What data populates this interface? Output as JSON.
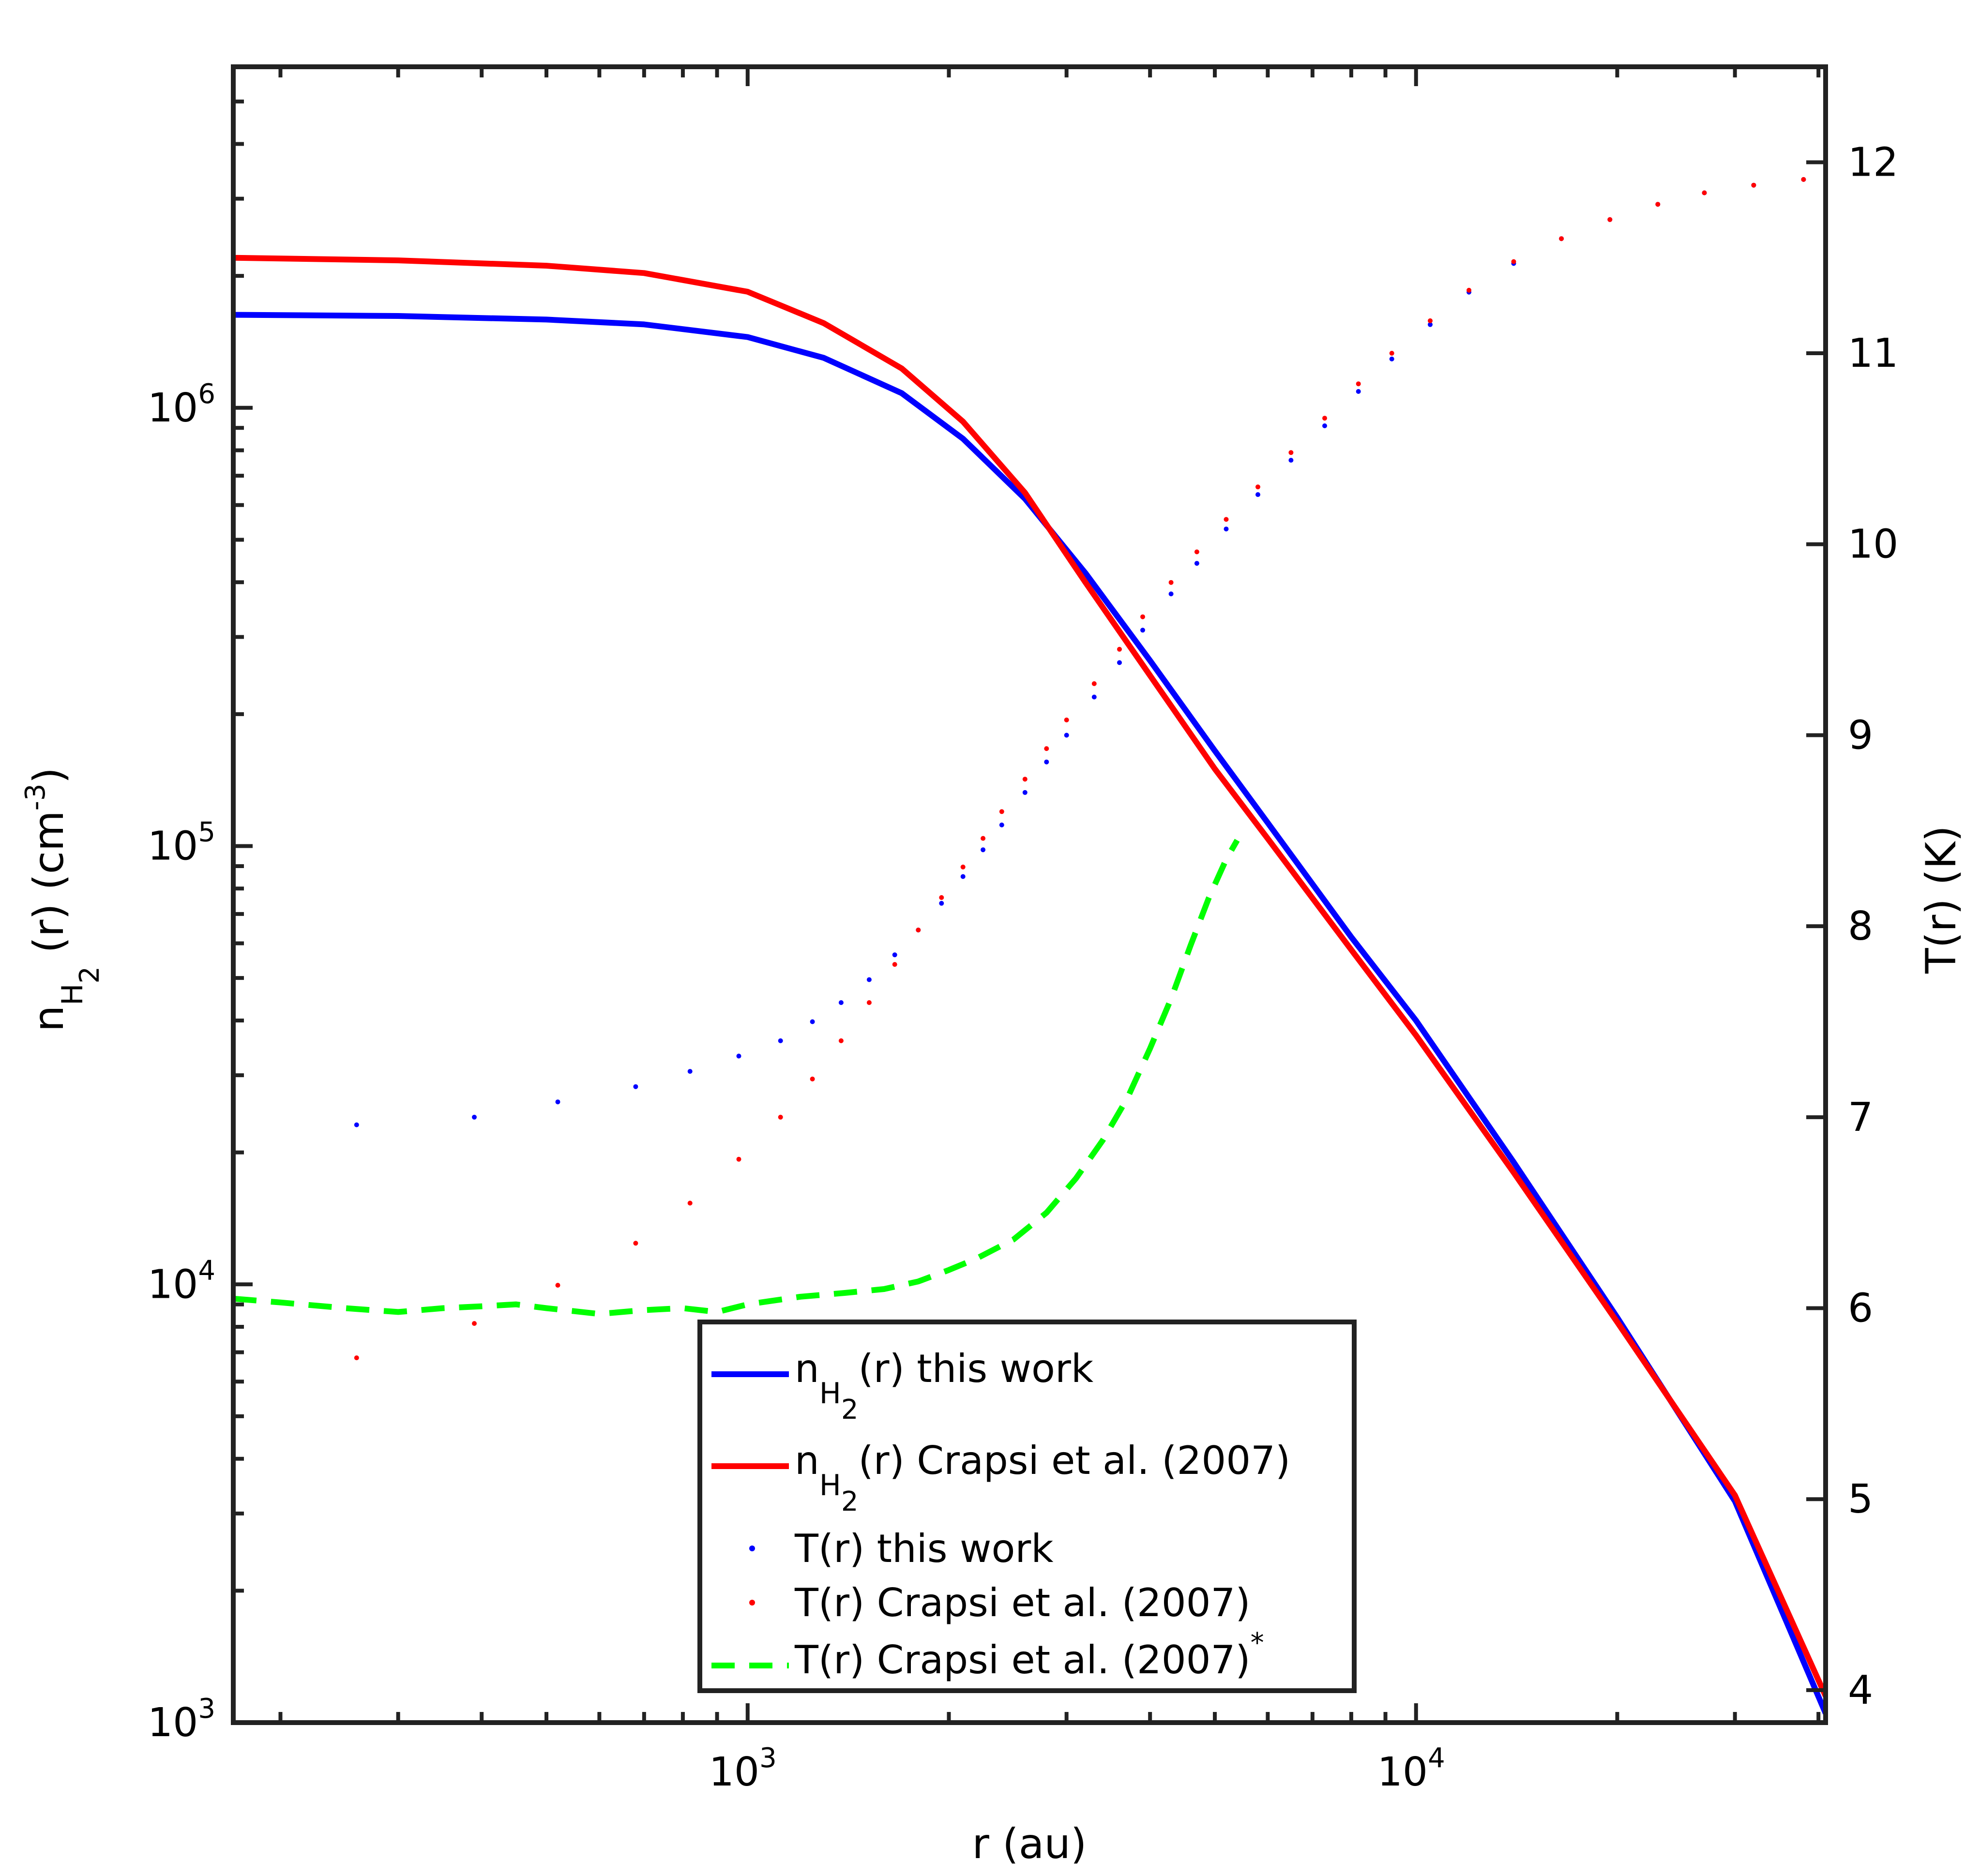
{
  "chart_data": {
    "type": "line",
    "x_axis": {
      "label": "r (au)",
      "scale": "log",
      "range": [
        170,
        41000
      ],
      "major_ticks": [
        1000,
        10000
      ],
      "tick_labels": [
        {
          "base": "10",
          "exp": "3"
        },
        {
          "base": "10",
          "exp": "4"
        }
      ]
    },
    "y_axis_left": {
      "label_main": "n",
      "label_sub1": "H",
      "label_sub2": "2",
      "label_rest": " (r) (cm",
      "label_exp": "-3",
      "label_close": ")",
      "scale": "log",
      "range": [
        1000,
        6000000
      ],
      "major_ticks": [
        1000,
        10000,
        100000,
        1000000
      ],
      "tick_labels": [
        {
          "base": "10",
          "exp": "3"
        },
        {
          "base": "10",
          "exp": "4"
        },
        {
          "base": "10",
          "exp": "5"
        },
        {
          "base": "10",
          "exp": "6"
        }
      ]
    },
    "y_axis_right": {
      "label": "T(r) (K)",
      "scale": "linear",
      "range": [
        3.83,
        12.5
      ],
      "ticks": [
        4,
        5,
        6,
        7,
        8,
        9,
        10,
        11,
        12
      ],
      "tick_labels": [
        "4",
        "5",
        "6",
        "7",
        "8",
        "9",
        "10",
        "11",
        "12"
      ]
    },
    "series": [
      {
        "id": "n_this",
        "name": "n_H2(r) this work",
        "style": "solid",
        "color": "#0000ff",
        "axis": "left",
        "x": [
          170,
          300,
          500,
          700,
          1000,
          1300,
          1700,
          2100,
          2600,
          3200,
          4000,
          5000,
          6000,
          8000,
          10000,
          14000,
          20000,
          30000,
          41000
        ],
        "y": [
          1630000,
          1620000,
          1590000,
          1550000,
          1450000,
          1300000,
          1080000,
          850000,
          620000,
          420000,
          265000,
          165000,
          113000,
          62000,
          40000,
          19000,
          8400,
          3200,
          1050
        ]
      },
      {
        "id": "n_crapsi",
        "name": "n_H2(r) Crapsi et al. (2007)",
        "style": "solid",
        "color": "#ff0000",
        "axis": "left",
        "x": [
          170,
          300,
          500,
          700,
          1000,
          1300,
          1700,
          2100,
          2600,
          3200,
          4000,
          5000,
          6000,
          8000,
          10000,
          14000,
          20000,
          30000,
          41000
        ],
        "y": [
          2200000,
          2170000,
          2110000,
          2030000,
          1840000,
          1560000,
          1230000,
          930000,
          640000,
          400000,
          245000,
          150000,
          104000,
          58000,
          37000,
          18000,
          8200,
          3300,
          1150
        ]
      },
      {
        "id": "t_this",
        "name": "T(r) this work",
        "style": "dots",
        "color": "#0000ff",
        "axis": "right",
        "x": [
          170,
          260,
          390,
          520,
          680,
          820,
          970,
          1120,
          1250,
          1380,
          1520,
          1660,
          1800,
          1950,
          2100,
          2250,
          2400,
          2600,
          2800,
          3000,
          3300,
          3600,
          3900,
          4300,
          4700,
          5200,
          5800,
          6500,
          7300,
          8200,
          9200,
          10500,
          12000,
          14000,
          16500,
          19500,
          23000,
          27000,
          32000,
          38000,
          41000
        ],
        "y": [
          7.2,
          6.96,
          7.0,
          7.08,
          7.16,
          7.24,
          7.32,
          7.4,
          7.5,
          7.6,
          7.72,
          7.85,
          7.98,
          8.12,
          8.26,
          8.4,
          8.53,
          8.7,
          8.86,
          9.0,
          9.2,
          9.38,
          9.55,
          9.74,
          9.9,
          10.08,
          10.26,
          10.44,
          10.62,
          10.8,
          10.97,
          11.15,
          11.32,
          11.47,
          11.6,
          11.7,
          11.78,
          11.84,
          11.88,
          11.91,
          11.92
        ]
      },
      {
        "id": "t_crapsi",
        "name": "T(r) Crapsi et al. (2007)",
        "style": "dots",
        "color": "#ff0000",
        "axis": "right",
        "x": [
          170,
          260,
          390,
          520,
          680,
          820,
          970,
          1120,
          1250,
          1380,
          1520,
          1660,
          1800,
          1950,
          2100,
          2250,
          2400,
          2600,
          2800,
          3000,
          3300,
          3600,
          3900,
          4300,
          4700,
          5200,
          5800,
          6500,
          7300,
          8200,
          9200,
          10500,
          12000,
          14000,
          16500,
          19500,
          23000,
          27000,
          32000,
          38000,
          41000
        ],
        "y": [
          5.6,
          5.74,
          5.92,
          6.12,
          6.34,
          6.55,
          6.78,
          7.0,
          7.2,
          7.4,
          7.6,
          7.8,
          7.98,
          8.15,
          8.31,
          8.46,
          8.6,
          8.77,
          8.93,
          9.08,
          9.27,
          9.45,
          9.62,
          9.8,
          9.96,
          10.13,
          10.3,
          10.48,
          10.66,
          10.84,
          11.0,
          11.17,
          11.33,
          11.48,
          11.6,
          11.7,
          11.78,
          11.84,
          11.88,
          11.91,
          11.92
        ]
      },
      {
        "id": "t_crapsi_star",
        "name": "T(r) Crapsi et al. (2007)*",
        "style": "dashed",
        "color": "#00ff00",
        "axis": "right",
        "x": [
          170,
          200,
          250,
          300,
          350,
          400,
          450,
          500,
          600,
          700,
          800,
          900,
          1000,
          1200,
          1400,
          1600,
          1800,
          2000,
          2200,
          2500,
          2800,
          3100,
          3400,
          3700,
          4000,
          4300,
          4600,
          4900,
          5200,
          5400
        ],
        "y": [
          6.05,
          6.03,
          6.0,
          5.98,
          6.0,
          6.01,
          6.02,
          6.0,
          5.97,
          5.99,
          6.0,
          5.98,
          6.02,
          6.06,
          6.08,
          6.1,
          6.14,
          6.2,
          6.26,
          6.36,
          6.5,
          6.68,
          6.88,
          7.1,
          7.36,
          7.62,
          7.9,
          8.15,
          8.35,
          8.45
        ]
      }
    ],
    "legend": {
      "placement": "bottom-center",
      "entries": [
        {
          "series": "n_this",
          "pre": "n",
          "sub1": "H",
          "sub2": "2",
          "post": "(r) this work",
          "sup": ""
        },
        {
          "series": "n_crapsi",
          "pre": "n",
          "sub1": "H",
          "sub2": "2",
          "post": "(r) Crapsi et al. (2007)",
          "sup": ""
        },
        {
          "series": "t_this",
          "pre": "T(r) this work",
          "sub1": "",
          "sub2": "",
          "post": "",
          "sup": ""
        },
        {
          "series": "t_crapsi",
          "pre": "T(r) Crapsi et al. (2007)",
          "sub1": "",
          "sub2": "",
          "post": "",
          "sup": ""
        },
        {
          "series": "t_crapsi_star",
          "pre": "T(r) Crapsi et al. (2007)",
          "sub1": "",
          "sub2": "",
          "post": "",
          "sup": "*"
        }
      ]
    },
    "grid": false
  }
}
